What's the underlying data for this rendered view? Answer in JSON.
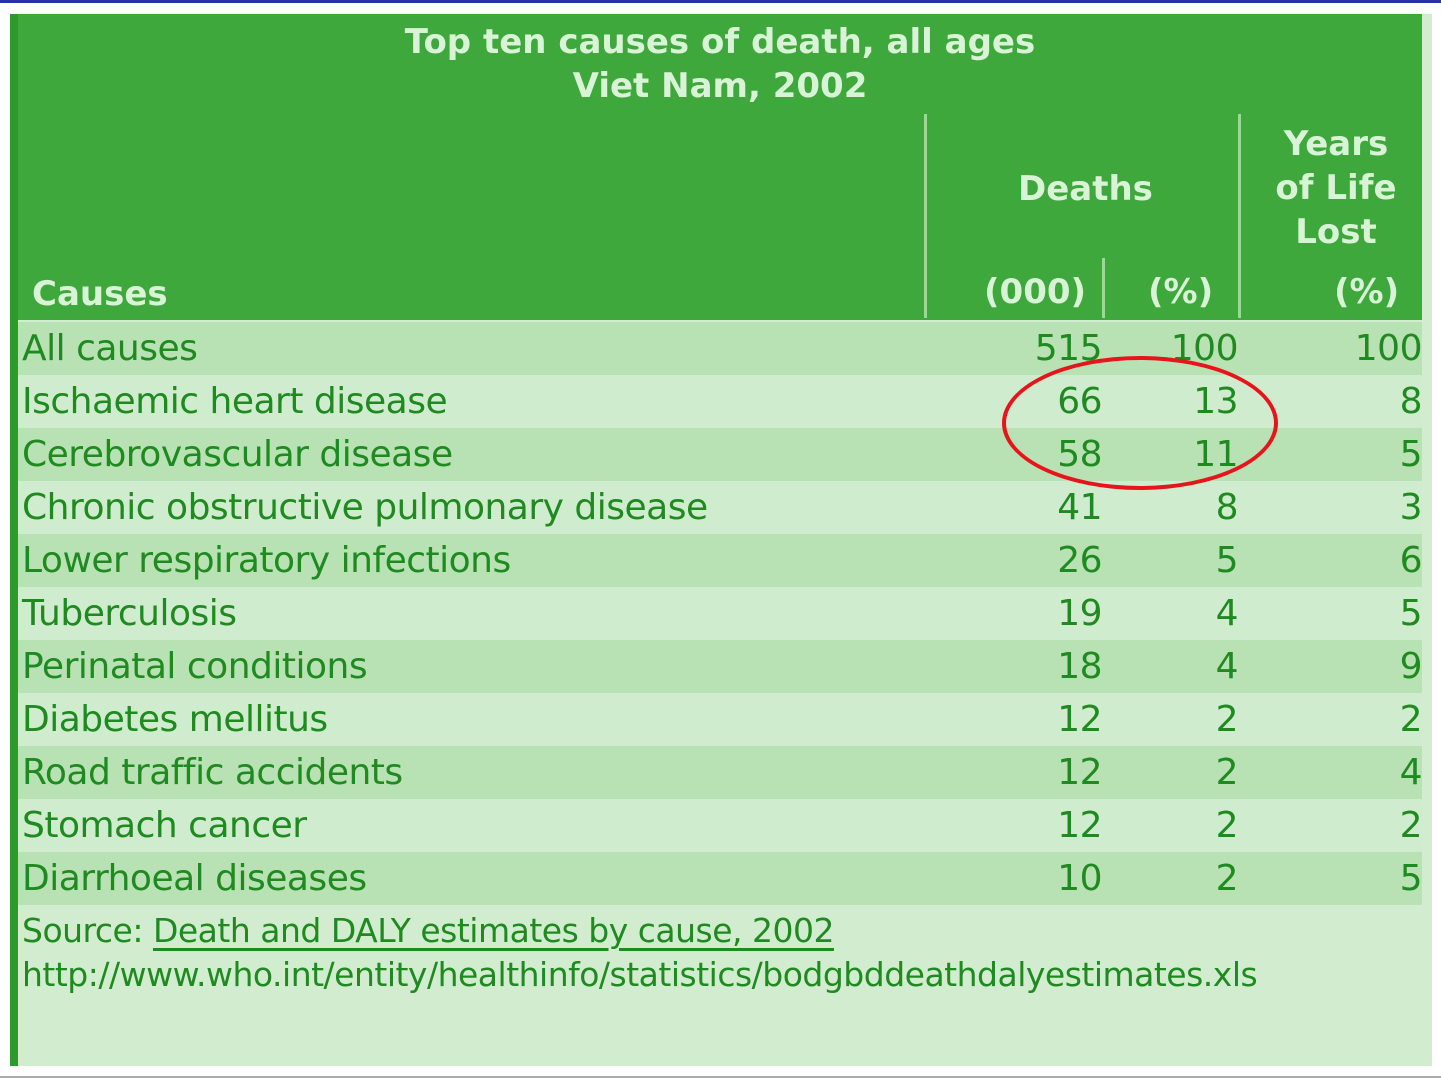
{
  "chart_data": {
    "type": "table",
    "title": "Top ten causes of death, all ages",
    "subtitle": "Viet Nam, 2002",
    "header": {
      "causes": "Causes",
      "deaths": "Deaths",
      "deaths_count_unit": "(000)",
      "deaths_pct_unit": "(%)",
      "yll_line1": "Years",
      "yll_line2": "of Life",
      "yll_line3": "Lost",
      "yll_unit": "(%)"
    },
    "rows": [
      {
        "cause": "All causes",
        "deaths": "515",
        "deaths_pct": "100",
        "yll_pct": "100"
      },
      {
        "cause": "Ischaemic heart disease",
        "deaths": "66",
        "deaths_pct": "13",
        "yll_pct": "8"
      },
      {
        "cause": "Cerebrovascular disease",
        "deaths": "58",
        "deaths_pct": "11",
        "yll_pct": "5"
      },
      {
        "cause": "Chronic obstructive pulmonary disease",
        "deaths": "41",
        "deaths_pct": "8",
        "yll_pct": "3"
      },
      {
        "cause": "Lower respiratory infections",
        "deaths": "26",
        "deaths_pct": "5",
        "yll_pct": "6"
      },
      {
        "cause": "Tuberculosis",
        "deaths": "19",
        "deaths_pct": "4",
        "yll_pct": "5"
      },
      {
        "cause": "Perinatal conditions",
        "deaths": "18",
        "deaths_pct": "4",
        "yll_pct": "9"
      },
      {
        "cause": "Diabetes mellitus",
        "deaths": "12",
        "deaths_pct": "2",
        "yll_pct": "2"
      },
      {
        "cause": "Road traffic accidents",
        "deaths": "12",
        "deaths_pct": "2",
        "yll_pct": "4"
      },
      {
        "cause": "Stomach cancer",
        "deaths": "12",
        "deaths_pct": "2",
        "yll_pct": "2"
      },
      {
        "cause": "Diarrhoeal diseases",
        "deaths": "10",
        "deaths_pct": "2",
        "yll_pct": "5"
      }
    ],
    "source_label": "Source:",
    "source_link": "Death and DALY estimates by cause, 2002",
    "source_url": "http://www.who.int/entity/healthinfo/statistics/bodgbddeathdalyestimates.xls",
    "highlight_color": "#e8141c"
  }
}
